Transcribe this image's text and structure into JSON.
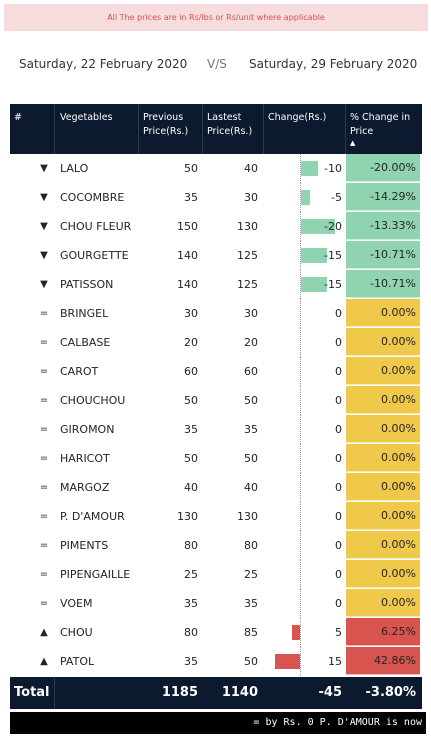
{
  "notice": "All The prices are in  Rs/lbs or Rs/unit where applicable",
  "dates": {
    "from": "Saturday, 22 February 2020",
    "vs": "V/S",
    "to": "Saturday, 29 February 2020"
  },
  "headers": {
    "index": "#",
    "vegetables": "Vegetables",
    "previous": "Previous Price(Rs.)",
    "latest": "Lastest Price(Rs.)",
    "change": "Change(Rs.)",
    "pct_change": "% Change in Price",
    "sort_indicator": "▲"
  },
  "colors": {
    "decrease": "#8fd3b0",
    "neutral": "#f0c94a",
    "increase": "#d9534f"
  },
  "rows": [
    {
      "indicator": "▼",
      "name": "LALO",
      "previous": "50",
      "latest": "40",
      "change": "-10",
      "pct": "-20.00%",
      "change_value": -10,
      "status": "decrease"
    },
    {
      "indicator": "▼",
      "name": "COCOMBRE",
      "previous": "35",
      "latest": "30",
      "change": "-5",
      "pct": "-14.29%",
      "change_value": -5,
      "status": "decrease"
    },
    {
      "indicator": "▼",
      "name": "CHOU FLEUR",
      "previous": "150",
      "latest": "130",
      "change": "-20",
      "pct": "-13.33%",
      "change_value": -20,
      "status": "decrease"
    },
    {
      "indicator": "▼",
      "name": "GOURGETTE",
      "previous": "140",
      "latest": "125",
      "change": "-15",
      "pct": "-10.71%",
      "change_value": -15,
      "status": "decrease"
    },
    {
      "indicator": "▼",
      "name": "PATISSON",
      "previous": "140",
      "latest": "125",
      "change": "-15",
      "pct": "-10.71%",
      "change_value": -15,
      "status": "decrease"
    },
    {
      "indicator": "=",
      "name": "BRINGEL",
      "previous": "30",
      "latest": "30",
      "change": "0",
      "pct": "0.00%",
      "change_value": 0,
      "status": "neutral"
    },
    {
      "indicator": "=",
      "name": "CALBASE",
      "previous": "20",
      "latest": "20",
      "change": "0",
      "pct": "0.00%",
      "change_value": 0,
      "status": "neutral"
    },
    {
      "indicator": "=",
      "name": "CAROT",
      "previous": "60",
      "latest": "60",
      "change": "0",
      "pct": "0.00%",
      "change_value": 0,
      "status": "neutral"
    },
    {
      "indicator": "=",
      "name": "CHOUCHOU",
      "previous": "50",
      "latest": "50",
      "change": "0",
      "pct": "0.00%",
      "change_value": 0,
      "status": "neutral"
    },
    {
      "indicator": "=",
      "name": "GIROMON",
      "previous": "35",
      "latest": "35",
      "change": "0",
      "pct": "0.00%",
      "change_value": 0,
      "status": "neutral"
    },
    {
      "indicator": "=",
      "name": "HARICOT",
      "previous": "50",
      "latest": "50",
      "change": "0",
      "pct": "0.00%",
      "change_value": 0,
      "status": "neutral"
    },
    {
      "indicator": "=",
      "name": "MARGOZ",
      "previous": "40",
      "latest": "40",
      "change": "0",
      "pct": "0.00%",
      "change_value": 0,
      "status": "neutral"
    },
    {
      "indicator": "=",
      "name": "P. D'AMOUR",
      "previous": "130",
      "latest": "130",
      "change": "0",
      "pct": "0.00%",
      "change_value": 0,
      "status": "neutral"
    },
    {
      "indicator": "=",
      "name": "PIMENTS",
      "previous": "80",
      "latest": "80",
      "change": "0",
      "pct": "0.00%",
      "change_value": 0,
      "status": "neutral"
    },
    {
      "indicator": "=",
      "name": "PIPENGAILLE",
      "previous": "25",
      "latest": "25",
      "change": "0",
      "pct": "0.00%",
      "change_value": 0,
      "status": "neutral"
    },
    {
      "indicator": "=",
      "name": "VOEM",
      "previous": "35",
      "latest": "35",
      "change": "0",
      "pct": "0.00%",
      "change_value": 0,
      "status": "neutral"
    },
    {
      "indicator": "▲",
      "name": "CHOU",
      "previous": "80",
      "latest": "85",
      "change": "5",
      "pct": "6.25%",
      "change_value": 5,
      "status": "increase"
    },
    {
      "indicator": "▲",
      "name": "PATOL",
      "previous": "35",
      "latest": "50",
      "change": "15",
      "pct": "42.86%",
      "change_value": 15,
      "status": "increase"
    }
  ],
  "total": {
    "label": "Total",
    "previous": "1185",
    "latest": "1140",
    "change": "-45",
    "pct": "-3.80%"
  },
  "ticker": "= by Rs. 0 P. D'AMOUR is now"
}
